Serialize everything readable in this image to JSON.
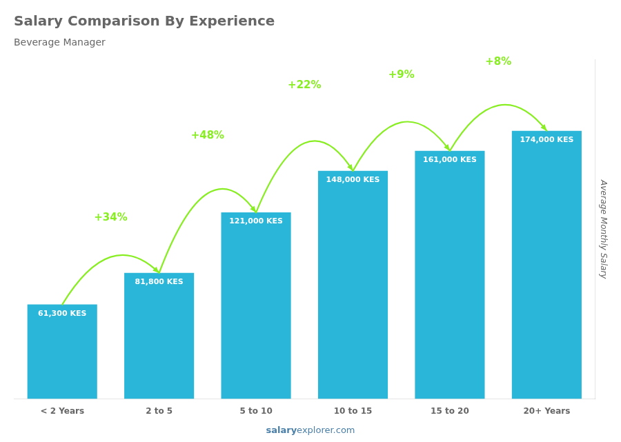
{
  "chart_data": {
    "type": "bar",
    "title": "Salary Comparison By Experience",
    "subtitle": "Beverage Manager",
    "categories": [
      "< 2 Years",
      "2 to 5",
      "5 to 10",
      "10 to 15",
      "15 to 20",
      "20+ Years"
    ],
    "values": [
      61300,
      81800,
      121000,
      148000,
      161000,
      174000
    ],
    "value_labels": [
      "61,300 KES",
      "81,800 KES",
      "121,000 KES",
      "148,000 KES",
      "161,000 KES",
      "174,000 KES"
    ],
    "data_labels": true,
    "color": "#29b6d8",
    "ylim": [
      0,
      220000
    ],
    "ylabel": "Average Monthly Salary",
    "grid": false,
    "tick_labels": "x",
    "annotations": [
      {
        "text": "+34%",
        "from": "< 2 Years",
        "to": "2 to 5",
        "color": "#88ee22"
      },
      {
        "text": "+48%",
        "from": "2 to 5",
        "to": "5 to 10",
        "color": "#88ee22"
      },
      {
        "text": "+22%",
        "from": "5 to 10",
        "to": "10 to 15",
        "color": "#88ee22"
      },
      {
        "text": "+9%",
        "from": "10 to 15",
        "to": "15 to 20",
        "color": "#88ee22"
      },
      {
        "text": "+8%",
        "from": "15 to 20",
        "to": "20+ Years",
        "color": "#88ee22"
      }
    ],
    "footer": [
      "salary",
      "explorer.com"
    ]
  }
}
